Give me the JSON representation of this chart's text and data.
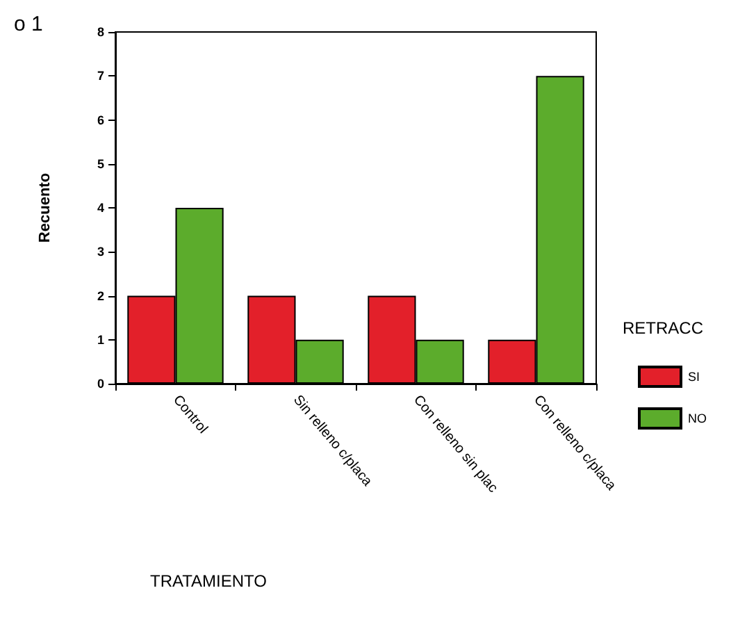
{
  "chart_data": {
    "type": "bar",
    "xlabel": "TRATAMIENTO",
    "ylabel": "Recuento",
    "legend_title": "RETRACC",
    "annotations": [
      "o 1"
    ],
    "categories": [
      "Control",
      "Sin relleno c/placa",
      "Con relleno sin plac",
      "Con relleno c/placa"
    ],
    "series": [
      {
        "name": "SI",
        "color": "#e3202a",
        "values": [
          2,
          2,
          2,
          1
        ]
      },
      {
        "name": "NO",
        "color": "#5cac2c",
        "values": [
          4,
          1,
          1,
          7
        ]
      }
    ],
    "ylim": [
      0,
      8
    ],
    "yticks": [
      0,
      1,
      2,
      3,
      4,
      5,
      6,
      7,
      8
    ],
    "grid": false,
    "legend": "right"
  }
}
